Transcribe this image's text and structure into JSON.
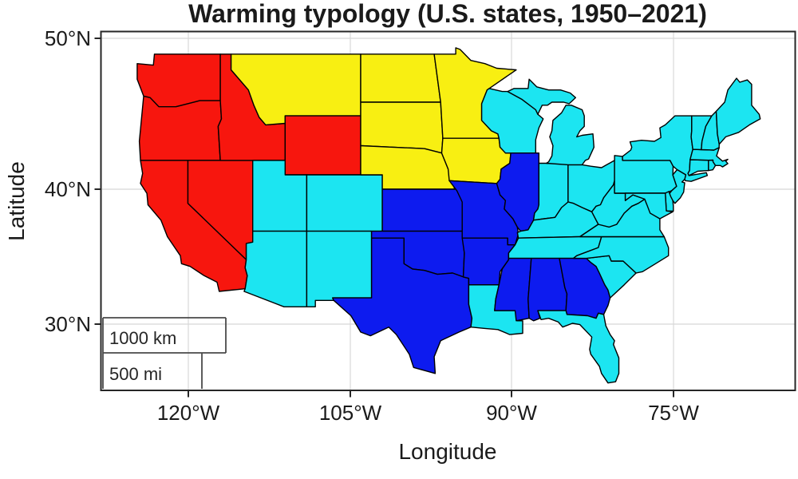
{
  "chart_data": {
    "type": "choropleth",
    "title": "Warming typology (U.S. states, 1950–2021)",
    "geography": "Contiguous United States, state level",
    "grid": true,
    "legend": false,
    "axes": {
      "x": {
        "label": "Longitude",
        "ticks": [
          "120°W",
          "105°W",
          "90°W",
          "75°W"
        ],
        "tick_values_deg": [
          -120,
          -105,
          -90,
          -75
        ]
      },
      "y": {
        "label": "Latitude",
        "ticks": [
          "50°N",
          "40°N",
          "30°N"
        ],
        "tick_values_deg": [
          50,
          40,
          30
        ]
      }
    },
    "classes": [
      {
        "color": "#f7160e",
        "color_name": "red",
        "states": [
          "WA",
          "OR",
          "CA",
          "NV",
          "ID",
          "WY"
        ]
      },
      {
        "color": "#f8ef12",
        "color_name": "yellow",
        "states": [
          "MT",
          "ND",
          "SD",
          "NE",
          "MN",
          "IA"
        ]
      },
      {
        "color": "#0d1bef",
        "color_name": "blue",
        "states": [
          "KS",
          "OK",
          "TX",
          "MO",
          "AR",
          "IL",
          "MS",
          "AL",
          "GA"
        ]
      },
      {
        "color": "#1ce5f1",
        "color_name": "cyan",
        "states": [
          "AZ",
          "NM",
          "UT",
          "CO",
          "LA",
          "WI",
          "MI",
          "IN",
          "OH",
          "KY",
          "TN",
          "FL",
          "SC",
          "NC",
          "VA",
          "WV",
          "MD",
          "DE",
          "NJ",
          "PA",
          "NY",
          "CT",
          "RI",
          "MA",
          "VT",
          "NH",
          "ME"
        ]
      }
    ],
    "scale_bar": {
      "km": "1000 km",
      "mi": "500 mi"
    },
    "border_color": "#000000",
    "background_color": "#ffffff"
  }
}
